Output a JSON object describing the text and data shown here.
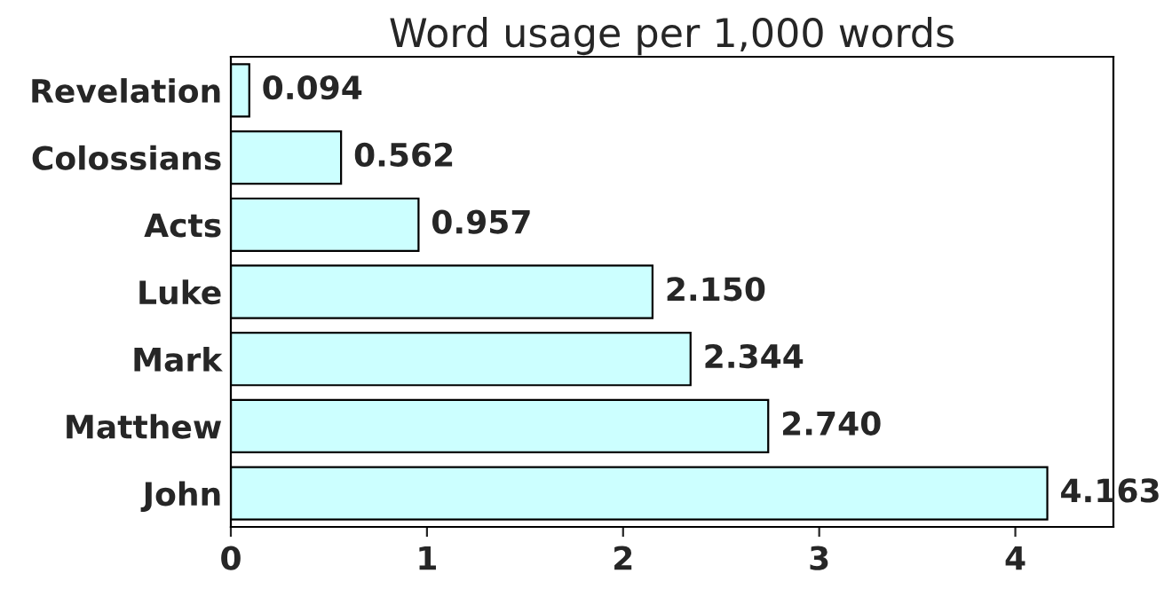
{
  "chart_data": {
    "type": "bar",
    "orientation": "horizontal",
    "title": "Word usage per 1,000 words",
    "categories": [
      "Revelation",
      "Colossians",
      "Acts",
      "Luke",
      "Mark",
      "Matthew",
      "John"
    ],
    "values": [
      0.094,
      0.562,
      0.957,
      2.15,
      2.344,
      2.74,
      4.163
    ],
    "value_labels": [
      "0.094",
      "0.562",
      "0.957",
      "2.150",
      "2.344",
      "2.740",
      "4.163"
    ],
    "color": "#ccffff",
    "xlim": [
      0,
      4.5
    ],
    "xticks": [
      0,
      1,
      2,
      3,
      4
    ],
    "grid": false,
    "legend": false
  }
}
